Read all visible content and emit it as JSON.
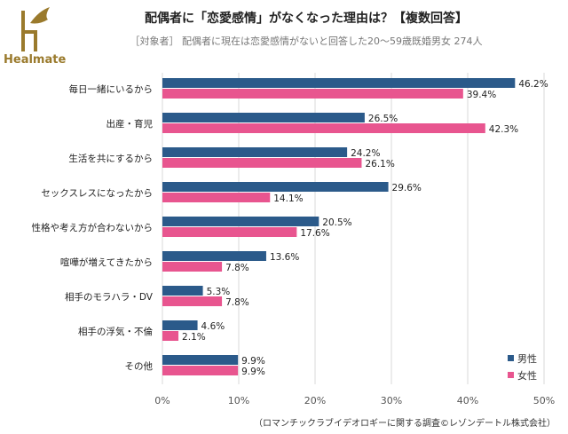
{
  "brand": "Healmate",
  "colors": {
    "male": "#2b5a8a",
    "female": "#e8558f",
    "brand": "#9a7a2c"
  },
  "chart_data": {
    "type": "bar",
    "orientation": "horizontal",
    "title": "配偶者に「恋愛感情」がなくなった理由は？【複数回答】",
    "subtitle": "［対象者］ 配偶者に現在は恋愛感情がないと回答した20～59歳既婚男女 274人",
    "categories": [
      "毎日一緒にいるから",
      "出産・育児",
      "生活を共にするから",
      "セックスレスになったから",
      "性格や考え方が合わないから",
      "喧嘩が増えてきたから",
      "相手のモラハラ・DV",
      "相手の浮気・不倫",
      "その他"
    ],
    "series": [
      {
        "name": "男性",
        "values": [
          46.2,
          26.5,
          24.2,
          29.6,
          20.5,
          13.6,
          5.3,
          4.6,
          9.9
        ]
      },
      {
        "name": "女性",
        "values": [
          39.4,
          42.3,
          26.1,
          14.1,
          17.6,
          7.8,
          7.8,
          2.1,
          9.9
        ]
      }
    ],
    "xlim": [
      0,
      50
    ],
    "xticks": [
      "0%",
      "10%",
      "20%",
      "30%",
      "40%",
      "50%"
    ],
    "grid": true,
    "legend": "bottom-right",
    "source": "（ロマンチックラブイデオロギーに関する調査©レゾンデートル株式会社）"
  }
}
